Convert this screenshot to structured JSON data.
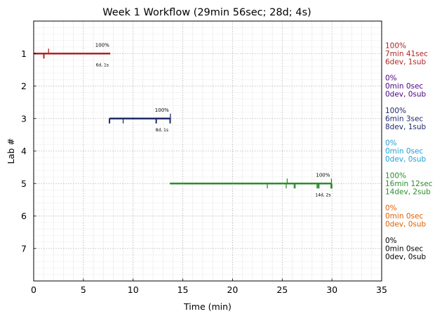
{
  "chart_data": {
    "type": "timeline",
    "title": "Week 1 Workflow (29min 56sec; 28d; 4s)",
    "xlabel": "Time (min)",
    "ylabel": "Lab #",
    "xlim": [
      0,
      35
    ],
    "ylim": [
      8,
      0
    ],
    "x_ticks": [
      0,
      5,
      10,
      15,
      20,
      25,
      30,
      35
    ],
    "y_ticks": [
      1,
      2,
      3,
      4,
      5,
      6,
      7
    ],
    "grid": true,
    "labs": [
      {
        "lab": 1,
        "color": "#b22222",
        "start": 0,
        "end": 7.7,
        "pct_label": "100%",
        "pct_x": 6.9,
        "count_label": "6d, 1s",
        "count_x": 6.9,
        "dev_ticks": [
          1.0,
          1.05
        ],
        "sub_ticks": [
          1.5
        ],
        "summary": [
          "100%",
          "7min 41sec",
          "6dev, 1sub"
        ]
      },
      {
        "lab": 2,
        "color": "#4b0082",
        "summary": [
          "0%",
          "0min 0sec",
          "0dev, 0sub"
        ]
      },
      {
        "lab": 3,
        "color": "#1f2a6b",
        "start": 7.6,
        "end": 13.8,
        "pct_label": "100%",
        "pct_x": 12.9,
        "count_label": "8d, 1s",
        "count_x": 12.9,
        "dev_ticks": [
          7.6,
          7.65,
          9.0,
          12.3,
          12.35,
          13.7,
          13.75
        ],
        "sub_ticks": [
          13.75
        ],
        "summary": [
          "100%",
          "6min 3sec",
          "8dev, 1sub"
        ]
      },
      {
        "lab": 4,
        "color": "#1f9fd8",
        "summary": [
          "0%",
          "0min 0sec",
          "0dev, 0sub"
        ]
      },
      {
        "lab": 5,
        "color": "#2e8b2e",
        "start": 13.7,
        "end": 29.95,
        "pct_label": "100%",
        "pct_x": 29.1,
        "count_label": "14d, 2s",
        "count_x": 29.1,
        "dev_ticks": [
          23.5,
          25.4,
          26.2,
          26.3,
          28.5,
          28.6,
          28.7,
          29.9,
          29.92,
          29.94,
          29.96,
          29.98,
          30.0
        ],
        "sub_ticks": [
          25.5,
          29.95
        ],
        "summary": [
          "100%",
          "16min 12sec",
          "14dev, 2sub"
        ]
      },
      {
        "lab": 6,
        "color": "#e06000",
        "summary": [
          "0%",
          "0min 0sec",
          "0dev, 0sub"
        ]
      },
      {
        "lab": 7,
        "color": "#000000",
        "summary": [
          "0%",
          "0min 0sec",
          "0dev, 0sub"
        ]
      }
    ]
  }
}
